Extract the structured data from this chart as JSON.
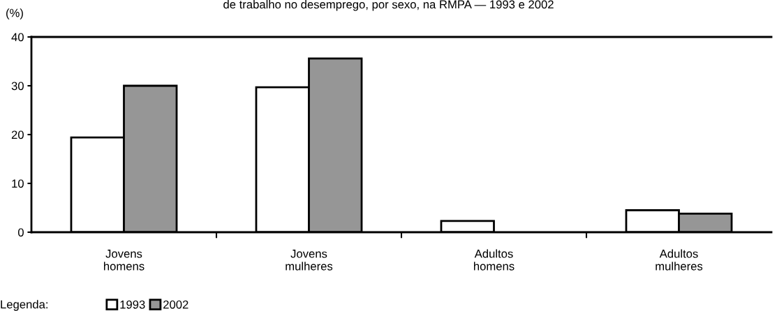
{
  "chart_data": {
    "type": "bar",
    "title": "de trabalho no desemprego, por sexo, na RMPA — 1993 e 2002",
    "ylabel": "(%)",
    "legend_title": "Legenda:",
    "categories": [
      "Jovens\nhomens",
      "Jovens\nmulheres",
      "Adultos\nhomens",
      "Adultos\nmulheres"
    ],
    "series": [
      {
        "name": "1993",
        "color": "#ffffff",
        "values": [
          19.4,
          29.7,
          2.3,
          4.5
        ]
      },
      {
        "name": "2002",
        "color": "#969696",
        "values": [
          30.0,
          35.6,
          null,
          3.8
        ]
      }
    ],
    "ylim": [
      0,
      40
    ],
    "yticks": [
      0,
      10,
      20,
      30,
      40
    ],
    "grid": false,
    "legend": "bottom"
  }
}
